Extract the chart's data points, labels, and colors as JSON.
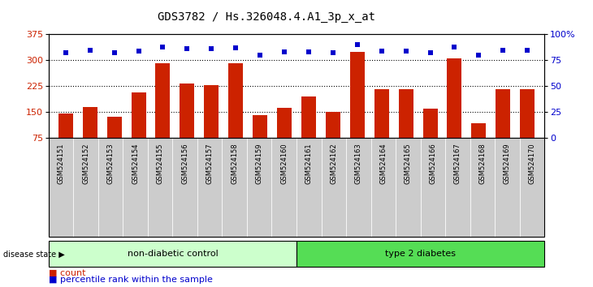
{
  "title": "GDS3782 / Hs.326048.4.A1_3p_x_at",
  "samples": [
    "GSM524151",
    "GSM524152",
    "GSM524153",
    "GSM524154",
    "GSM524155",
    "GSM524156",
    "GSM524157",
    "GSM524158",
    "GSM524159",
    "GSM524160",
    "GSM524161",
    "GSM524162",
    "GSM524163",
    "GSM524164",
    "GSM524165",
    "GSM524166",
    "GSM524167",
    "GSM524168",
    "GSM524169",
    "GSM524170"
  ],
  "counts": [
    145,
    165,
    137,
    207,
    291,
    233,
    228,
    291,
    140,
    162,
    195,
    150,
    325,
    215,
    215,
    160,
    305,
    117,
    215,
    215
  ],
  "percentiles": [
    82,
    85,
    82,
    84,
    88,
    86,
    86,
    87,
    80,
    83,
    83,
    82,
    90,
    84,
    84,
    82,
    88,
    80,
    85,
    85
  ],
  "non_diabetic_count": 10,
  "type2_count": 10,
  "ylim_left": [
    75,
    375
  ],
  "ylim_right": [
    0,
    100
  ],
  "yticks_left": [
    75,
    150,
    225,
    300,
    375
  ],
  "yticks_right": [
    0,
    25,
    50,
    75,
    100
  ],
  "bar_color": "#cc2200",
  "dot_color": "#0000cc",
  "non_diabetic_color": "#ccffcc",
  "type2_color": "#55dd55",
  "tick_bg_color": "#cccccc",
  "legend_count_label": "count",
  "legend_pct_label": "percentile rank within the sample",
  "disease_label": "disease state",
  "non_diabetic_label": "non-diabetic control",
  "type2_label": "type 2 diabetes",
  "title_fontsize": 10,
  "axis_fontsize": 8,
  "label_fontsize": 6,
  "legend_fontsize": 8
}
